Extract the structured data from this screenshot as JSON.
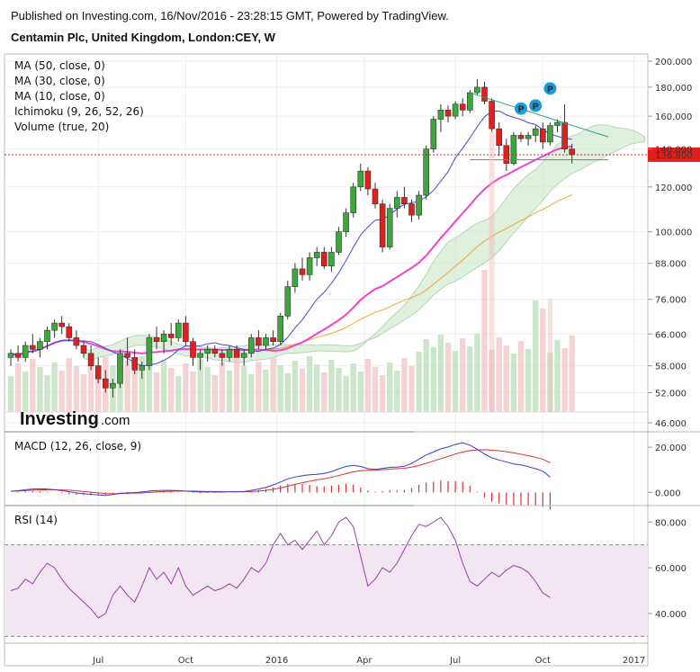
{
  "header": {
    "published": "Published on Investing.com, 16/Nov/2016 - 23:28:15 GMT, Powered by TradingView.",
    "instrument": "Centamin Plc, United Kingdom, London:CEY, W"
  },
  "brand": {
    "name": "Investing",
    "suffix": ".com"
  },
  "colors": {
    "up": "#3ca83c",
    "down": "#e0201e",
    "ma10": "#4a4adf",
    "ma30": "#ee44cc",
    "ma50": "#f5a623",
    "cloud": "#c9e6c9",
    "price": "#e0201e",
    "macd": "#3a3ad6",
    "signal": "#e03030",
    "rsi": "#9b40a8",
    "rsi_band": "#f3e6f3",
    "trend": "#2aa198"
  },
  "chart_data": [
    {
      "type": "candlestick",
      "panel": "price",
      "title": "Centamin Plc, United Kingdom, London:CEY, W",
      "indicators": [
        "MA (50, close, 0)",
        "MA (30, close, 0)",
        "MA (10, close, 0)",
        "Ichimoku (9, 26, 52, 26)",
        "Volume (true, 20)"
      ],
      "ylim": [
        46,
        206
      ],
      "yticks": [
        46,
        52,
        58,
        66,
        76,
        88,
        100,
        120,
        140,
        160,
        180,
        200
      ],
      "ytick_labels": [
        "46.000",
        "52.000",
        "58.000",
        "66.000",
        "76.000",
        "88.000",
        "100.000",
        "120.000",
        "140.000",
        "160.000",
        "180.000",
        "200.000"
      ],
      "last_price": 136.8,
      "last_price_label": "136.800",
      "x_labels": [
        "Jul",
        "Oct",
        "2016",
        "Apr",
        "Jul",
        "Oct",
        "2017"
      ],
      "candles": [
        {
          "o": 60,
          "h": 62,
          "l": 58,
          "c": 61
        },
        {
          "o": 61,
          "h": 63,
          "l": 59,
          "c": 60
        },
        {
          "o": 60,
          "h": 64,
          "l": 59,
          "c": 63
        },
        {
          "o": 63,
          "h": 66,
          "l": 61,
          "c": 62
        },
        {
          "o": 62,
          "h": 65,
          "l": 60,
          "c": 64
        },
        {
          "o": 64,
          "h": 68,
          "l": 62,
          "c": 67
        },
        {
          "o": 67,
          "h": 70,
          "l": 65,
          "c": 69
        },
        {
          "o": 69,
          "h": 71,
          "l": 66,
          "c": 68
        },
        {
          "o": 68,
          "h": 69,
          "l": 64,
          "c": 65
        },
        {
          "o": 65,
          "h": 67,
          "l": 62,
          "c": 63
        },
        {
          "o": 63,
          "h": 64,
          "l": 60,
          "c": 61
        },
        {
          "o": 61,
          "h": 63,
          "l": 57,
          "c": 58
        },
        {
          "o": 58,
          "h": 60,
          "l": 54,
          "c": 55
        },
        {
          "o": 55,
          "h": 57,
          "l": 52,
          "c": 53
        },
        {
          "o": 53,
          "h": 55,
          "l": 51,
          "c": 54
        },
        {
          "o": 54,
          "h": 62,
          "l": 53,
          "c": 61
        },
        {
          "o": 61,
          "h": 65,
          "l": 58,
          "c": 60
        },
        {
          "o": 60,
          "h": 62,
          "l": 56,
          "c": 57
        },
        {
          "o": 57,
          "h": 59,
          "l": 55,
          "c": 58
        },
        {
          "o": 58,
          "h": 66,
          "l": 57,
          "c": 65
        },
        {
          "o": 65,
          "h": 68,
          "l": 62,
          "c": 64
        },
        {
          "o": 64,
          "h": 67,
          "l": 61,
          "c": 66
        },
        {
          "o": 66,
          "h": 69,
          "l": 63,
          "c": 65
        },
        {
          "o": 65,
          "h": 70,
          "l": 64,
          "c": 69
        },
        {
          "o": 69,
          "h": 71,
          "l": 63,
          "c": 64
        },
        {
          "o": 64,
          "h": 65,
          "l": 58,
          "c": 60
        },
        {
          "o": 60,
          "h": 62,
          "l": 57,
          "c": 61
        },
        {
          "o": 61,
          "h": 63,
          "l": 59,
          "c": 62
        },
        {
          "o": 62,
          "h": 63,
          "l": 60,
          "c": 61
        },
        {
          "o": 61,
          "h": 62,
          "l": 58,
          "c": 60
        },
        {
          "o": 60,
          "h": 63,
          "l": 59,
          "c": 62
        },
        {
          "o": 62,
          "h": 63,
          "l": 60,
          "c": 60
        },
        {
          "o": 60,
          "h": 62,
          "l": 58,
          "c": 61
        },
        {
          "o": 61,
          "h": 66,
          "l": 60,
          "c": 65
        },
        {
          "o": 65,
          "h": 67,
          "l": 62,
          "c": 63
        },
        {
          "o": 63,
          "h": 66,
          "l": 62,
          "c": 65
        },
        {
          "o": 65,
          "h": 67,
          "l": 63,
          "c": 64
        },
        {
          "o": 64,
          "h": 72,
          "l": 63,
          "c": 71
        },
        {
          "o": 71,
          "h": 82,
          "l": 70,
          "c": 80
        },
        {
          "o": 80,
          "h": 88,
          "l": 78,
          "c": 86
        },
        {
          "o": 86,
          "h": 90,
          "l": 82,
          "c": 84
        },
        {
          "o": 84,
          "h": 92,
          "l": 82,
          "c": 90
        },
        {
          "o": 90,
          "h": 94,
          "l": 87,
          "c": 92
        },
        {
          "o": 92,
          "h": 94,
          "l": 86,
          "c": 87
        },
        {
          "o": 87,
          "h": 94,
          "l": 85,
          "c": 92
        },
        {
          "o": 92,
          "h": 102,
          "l": 91,
          "c": 100
        },
        {
          "o": 100,
          "h": 110,
          "l": 98,
          "c": 108
        },
        {
          "o": 108,
          "h": 122,
          "l": 106,
          "c": 120
        },
        {
          "o": 120,
          "h": 132,
          "l": 118,
          "c": 128
        },
        {
          "o": 128,
          "h": 130,
          "l": 116,
          "c": 119
        },
        {
          "o": 119,
          "h": 122,
          "l": 110,
          "c": 112
        },
        {
          "o": 112,
          "h": 114,
          "l": 92,
          "c": 94
        },
        {
          "o": 94,
          "h": 112,
          "l": 93,
          "c": 110
        },
        {
          "o": 110,
          "h": 118,
          "l": 106,
          "c": 115
        },
        {
          "o": 115,
          "h": 120,
          "l": 110,
          "c": 112
        },
        {
          "o": 112,
          "h": 114,
          "l": 104,
          "c": 107
        },
        {
          "o": 107,
          "h": 118,
          "l": 105,
          "c": 116
        },
        {
          "o": 116,
          "h": 142,
          "l": 114,
          "c": 140
        },
        {
          "o": 140,
          "h": 160,
          "l": 138,
          "c": 158
        },
        {
          "o": 158,
          "h": 168,
          "l": 150,
          "c": 164
        },
        {
          "o": 164,
          "h": 167,
          "l": 156,
          "c": 160
        },
        {
          "o": 160,
          "h": 170,
          "l": 158,
          "c": 168
        },
        {
          "o": 168,
          "h": 172,
          "l": 160,
          "c": 164
        },
        {
          "o": 164,
          "h": 178,
          "l": 162,
          "c": 176
        },
        {
          "o": 176,
          "h": 186,
          "l": 174,
          "c": 180
        },
        {
          "o": 180,
          "h": 184,
          "l": 168,
          "c": 170
        },
        {
          "o": 170,
          "h": 172,
          "l": 150,
          "c": 152
        },
        {
          "o": 152,
          "h": 156,
          "l": 136,
          "c": 142
        },
        {
          "o": 142,
          "h": 146,
          "l": 128,
          "c": 132
        },
        {
          "o": 132,
          "h": 150,
          "l": 131,
          "c": 148
        },
        {
          "o": 148,
          "h": 150,
          "l": 144,
          "c": 146
        },
        {
          "o": 146,
          "h": 150,
          "l": 142,
          "c": 148
        },
        {
          "o": 148,
          "h": 154,
          "l": 144,
          "c": 152
        },
        {
          "o": 152,
          "h": 156,
          "l": 140,
          "c": 144
        },
        {
          "o": 144,
          "h": 156,
          "l": 142,
          "c": 154
        },
        {
          "o": 154,
          "h": 158,
          "l": 150,
          "c": 156
        },
        {
          "o": 156,
          "h": 168,
          "l": 138,
          "c": 140
        },
        {
          "o": 140,
          "h": 143,
          "l": 132,
          "c": 136.8
        }
      ],
      "markers": [
        "P",
        "P",
        "P"
      ]
    },
    {
      "type": "line",
      "panel": "macd",
      "title": "MACD (12, 26, close, 9)",
      "ylim": [
        -5,
        26
      ],
      "yticks": [
        0,
        20
      ],
      "ytick_labels": [
        "0.000",
        "20.000"
      ],
      "series": [
        {
          "name": "MACD",
          "values": [
            0.5,
            0.8,
            1.2,
            1.5,
            1.6,
            1.5,
            1.2,
            0.8,
            0.3,
            -0.2,
            -0.6,
            -0.9,
            -1.1,
            -1.3,
            -0.9,
            -0.4,
            -0.2,
            -0.1,
            0.2,
            0.6,
            0.8,
            0.9,
            0.9,
            0.8,
            0.6,
            0.4,
            0.2,
            0.2,
            0.2,
            0.2,
            0.3,
            0.3,
            0.4,
            0.9,
            1.5,
            2.2,
            3.3,
            4.6,
            6.0,
            6.8,
            7.4,
            7.8,
            8.0,
            8.4,
            9.2,
            10.4,
            11.5,
            12.0,
            11.5,
            10.5,
            10.2,
            10.6,
            11.1,
            11.2,
            11.6,
            12.8,
            14.7,
            16.6,
            17.9,
            19.3,
            20.1,
            21.2,
            21.9,
            20.9,
            19.1,
            17.0,
            15.3,
            14.3,
            13.5,
            12.6,
            12.2,
            11.4,
            10.5,
            9.4,
            6.8
          ]
        },
        {
          "name": "Signal",
          "values": [
            0.5,
            0.6,
            0.8,
            1.0,
            1.1,
            1.2,
            1.2,
            1.1,
            1.0,
            0.7,
            0.4,
            0.1,
            -0.2,
            -0.5,
            -0.6,
            -0.5,
            -0.4,
            -0.3,
            -0.2,
            0.0,
            0.2,
            0.4,
            0.5,
            0.6,
            0.6,
            0.6,
            0.5,
            0.4,
            0.4,
            0.3,
            0.3,
            0.3,
            0.3,
            0.4,
            0.6,
            0.9,
            1.4,
            2.0,
            2.8,
            3.6,
            4.3,
            5.0,
            5.6,
            6.1,
            6.7,
            7.5,
            8.3,
            9.1,
            9.6,
            9.8,
            9.9,
            10.1,
            10.3,
            10.5,
            10.7,
            11.2,
            11.9,
            12.9,
            13.9,
            14.9,
            15.9,
            17.0,
            17.9,
            18.5,
            18.8,
            18.9,
            18.7,
            18.4,
            18.0,
            17.5,
            16.9,
            16.2,
            15.5,
            14.7,
            13.1
          ]
        }
      ]
    },
    {
      "type": "line",
      "panel": "rsi",
      "title": "RSI (14)",
      "ylim": [
        27,
        86
      ],
      "yticks": [
        40,
        60,
        80
      ],
      "ytick_labels": [
        "40.000",
        "60.000",
        "80.000"
      ],
      "band": [
        30,
        70
      ],
      "series": [
        {
          "name": "RSI",
          "values": [
            50,
            51,
            55,
            53,
            58,
            62,
            60,
            55,
            51,
            48,
            45,
            42,
            38,
            40,
            48,
            52,
            48,
            45,
            52,
            60,
            55,
            58,
            53,
            60,
            52,
            48,
            50,
            52,
            50,
            51,
            53,
            51,
            55,
            60,
            58,
            62,
            70,
            75,
            70,
            72,
            68,
            72,
            76,
            70,
            74,
            80,
            82,
            78,
            65,
            52,
            55,
            60,
            58,
            62,
            68,
            74,
            79,
            78,
            80,
            82,
            78,
            72,
            62,
            54,
            52,
            55,
            58,
            56,
            59,
            61,
            60,
            58,
            54,
            49,
            47
          ]
        }
      ]
    }
  ]
}
